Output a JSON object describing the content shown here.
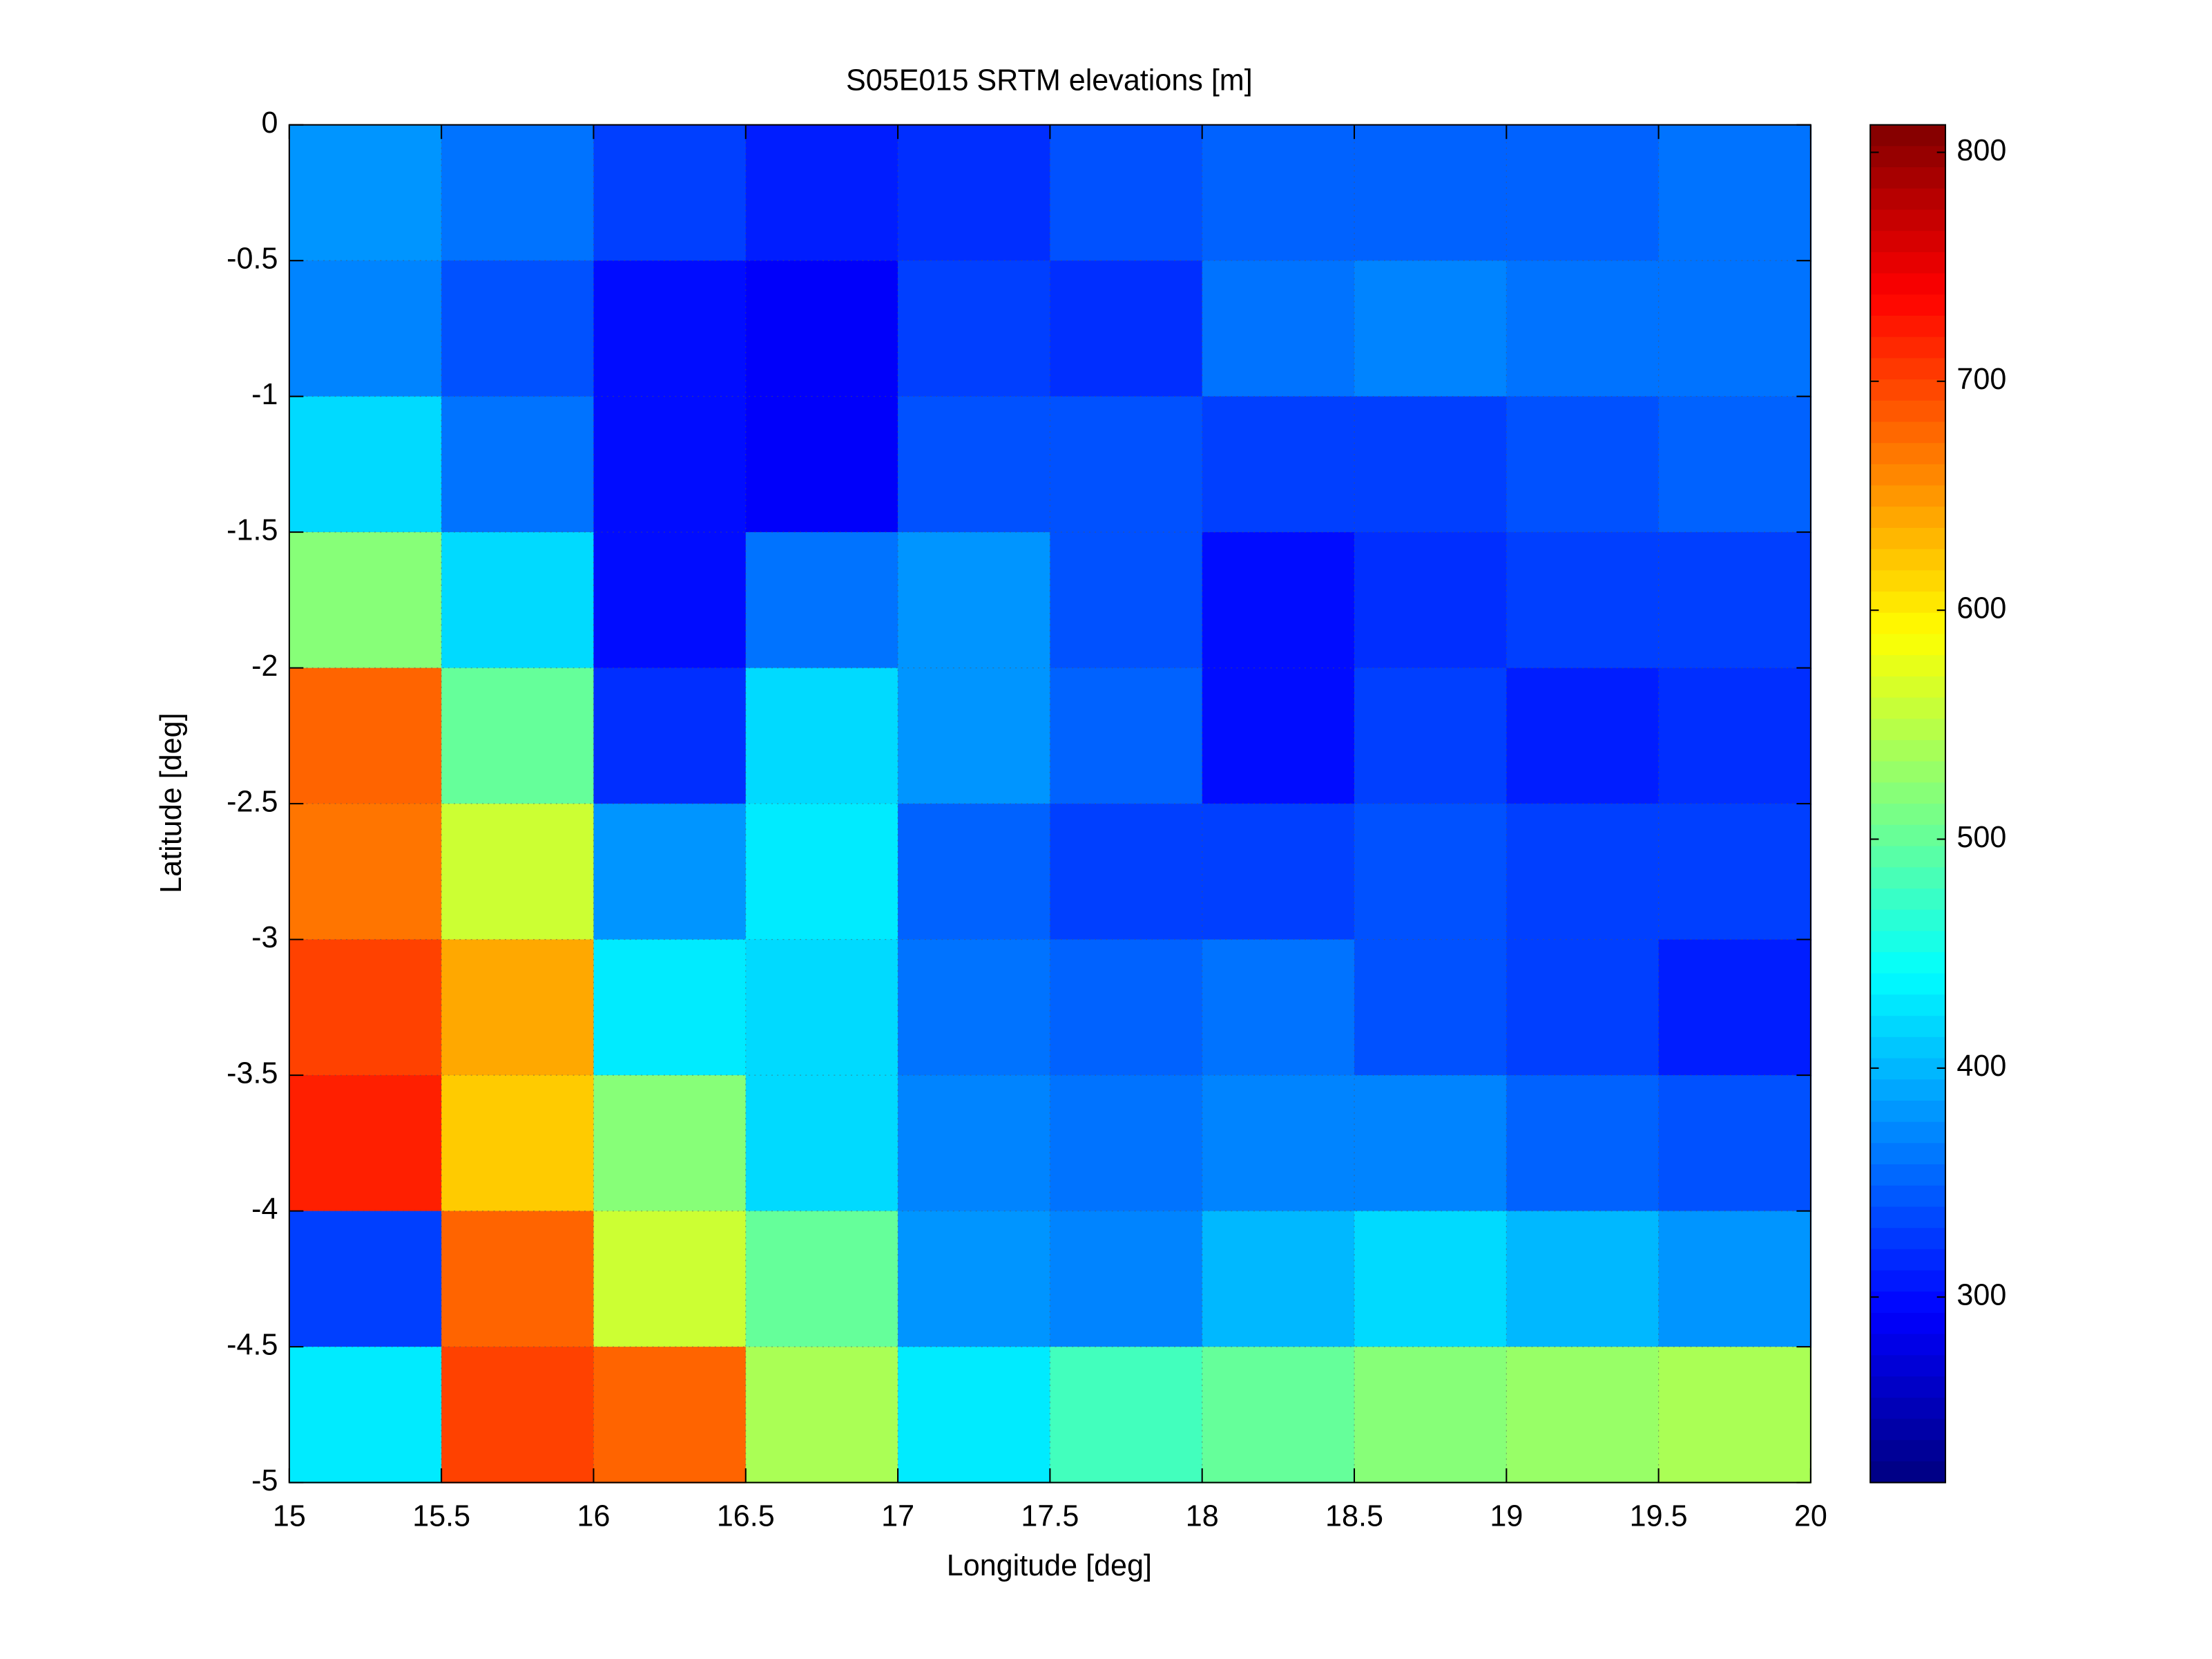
{
  "chart_data": {
    "type": "heatmap",
    "title": "S05E015 SRTM elevations [m]",
    "xlabel": "Longitude [deg]",
    "ylabel": "Latitude [deg]",
    "colormap": "jet",
    "grid": true,
    "x": [
      15.25,
      15.75,
      16.25,
      16.75,
      17.25,
      17.75,
      18.25,
      18.75,
      19.25,
      19.75
    ],
    "y": [
      -0.25,
      -0.75,
      -1.25,
      -1.75,
      -2.25,
      -2.75,
      -3.25,
      -3.75,
      -4.25,
      -4.75
    ],
    "z": [
      [
        380,
        360,
        330,
        310,
        320,
        340,
        350,
        350,
        350,
        360
      ],
      [
        370,
        340,
        300,
        290,
        330,
        320,
        360,
        370,
        360,
        360
      ],
      [
        420,
        360,
        300,
        290,
        340,
        340,
        330,
        330,
        340,
        350
      ],
      [
        520,
        420,
        300,
        360,
        380,
        340,
        300,
        320,
        330,
        330
      ],
      [
        680,
        500,
        320,
        420,
        380,
        350,
        300,
        330,
        310,
        320
      ],
      [
        670,
        560,
        380,
        430,
        350,
        330,
        330,
        340,
        330,
        330
      ],
      [
        700,
        640,
        430,
        420,
        360,
        350,
        360,
        340,
        330,
        310
      ],
      [
        720,
        620,
        520,
        420,
        370,
        360,
        370,
        370,
        350,
        340
      ],
      [
        330,
        680,
        560,
        500,
        380,
        370,
        400,
        420,
        400,
        380
      ],
      [
        430,
        700,
        680,
        540,
        430,
        480,
        500,
        520,
        530,
        540
      ]
    ],
    "xlim": [
      15,
      20
    ],
    "xticks": [
      15,
      15.5,
      16,
      16.5,
      17,
      17.5,
      18,
      18.5,
      19,
      19.5,
      20
    ],
    "ylim": [
      -5,
      0
    ],
    "yticks": [
      0,
      -0.5,
      -1,
      -1.5,
      -2,
      -2.5,
      -3,
      -3.5,
      -4,
      -4.5,
      -5
    ],
    "clim": [
      219,
      812
    ],
    "cticks": [
      300,
      400,
      500,
      600,
      700,
      800
    ]
  }
}
